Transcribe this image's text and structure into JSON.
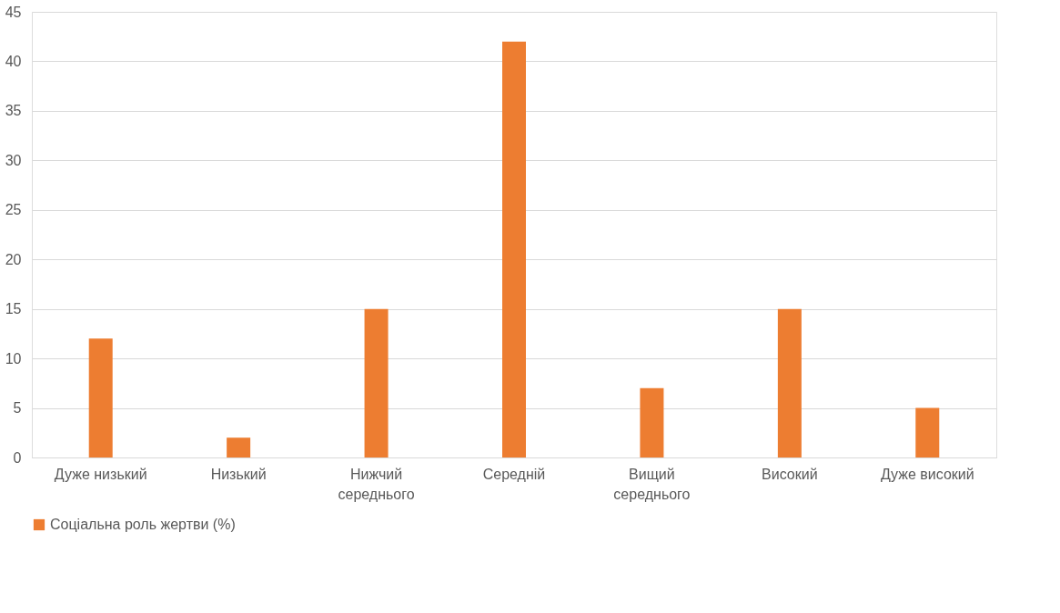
{
  "chart_data": {
    "type": "bar",
    "categories": [
      "Дуже низький",
      "Низький",
      "Нижчий середнього",
      "Середній",
      "Вищий середнього",
      "Високий",
      "Дуже високий"
    ],
    "series": [
      {
        "name": "Соціальна роль жертви (%)",
        "color": "#ed7d31",
        "values": [
          12,
          2,
          15,
          42,
          7,
          15,
          5
        ]
      }
    ],
    "ylim": [
      0,
      45
    ],
    "yticks": [
      0,
      5,
      10,
      15,
      20,
      25,
      30,
      35,
      40,
      45
    ],
    "grid": "y",
    "legend": "bottom"
  }
}
